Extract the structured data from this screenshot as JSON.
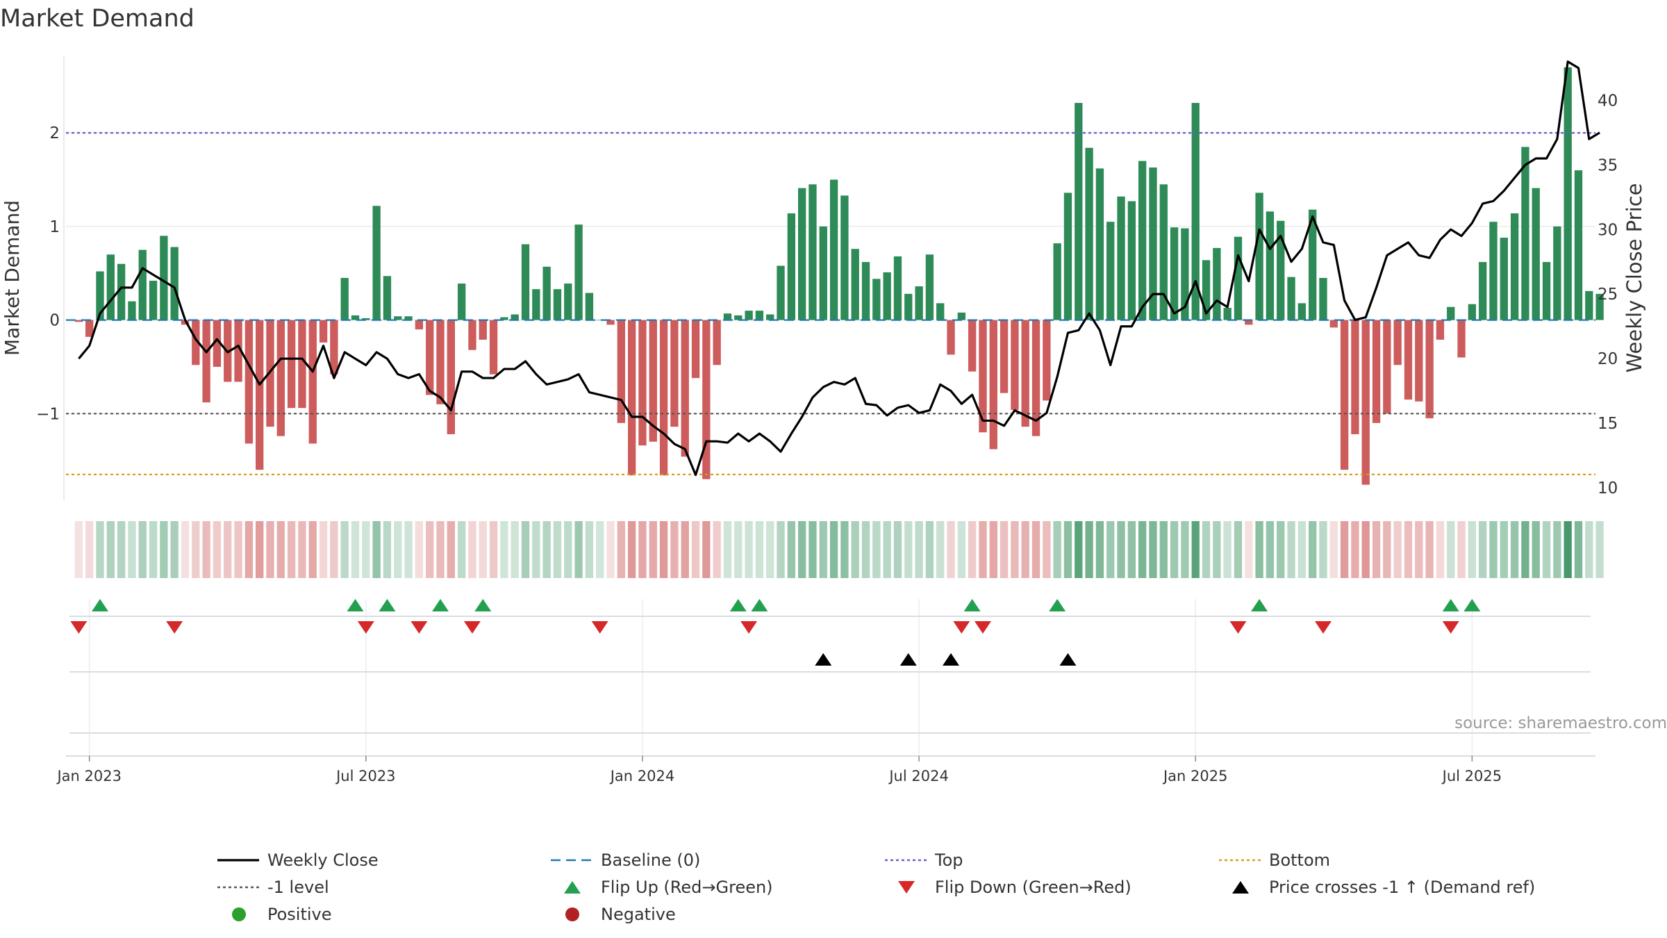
{
  "chart_data": {
    "type": "bar",
    "title": "Market Demand",
    "ylabel": "Market Demand",
    "y2label": "Weekly Close Price",
    "ylim": [
      -2.0,
      2.9
    ],
    "y2lim": [
      8.5,
      44.0
    ],
    "yticks": [
      {
        "v": 2,
        "label": "2"
      },
      {
        "v": 1,
        "label": "1"
      },
      {
        "v": 0,
        "label": "0"
      },
      {
        "v": -1,
        "label": "−1"
      }
    ],
    "y2ticks": [
      {
        "v": 40,
        "label": "40"
      },
      {
        "v": 35,
        "label": "35"
      },
      {
        "v": 30,
        "label": "30"
      },
      {
        "v": 25,
        "label": "25"
      },
      {
        "v": 20,
        "label": "20"
      },
      {
        "v": 15,
        "label": "15"
      },
      {
        "v": 10,
        "label": "10"
      }
    ],
    "xticks": [
      {
        "week": 1,
        "label": "Jan 2023"
      },
      {
        "week": 27,
        "label": "Jul 2023"
      },
      {
        "week": 53,
        "label": "Jan 2024"
      },
      {
        "week": 79,
        "label": "Jul 2024"
      },
      {
        "week": 105,
        "label": "Jan 2025"
      },
      {
        "week": 131,
        "label": "Jul 2025"
      }
    ],
    "x_domain": [
      -1.2,
      142.6
    ],
    "demand": [
      -0.02,
      -0.18,
      0.52,
      0.7,
      0.6,
      0.2,
      0.75,
      0.42,
      0.9,
      0.78,
      -0.05,
      -0.48,
      -0.88,
      -0.5,
      -0.66,
      -0.66,
      -1.32,
      -1.6,
      -1.14,
      -1.24,
      -0.94,
      -0.94,
      -1.32,
      -0.24,
      -0.58,
      0.45,
      0.05,
      0.02,
      1.22,
      0.47,
      0.04,
      0.04,
      -0.1,
      -0.8,
      -0.9,
      -1.22,
      0.39,
      -0.32,
      -0.21,
      -0.58,
      0.03,
      0.06,
      0.81,
      0.33,
      0.57,
      0.33,
      0.39,
      1.02,
      0.29,
      0.0,
      -0.05,
      -1.1,
      -1.66,
      -1.34,
      -1.3,
      -1.66,
      -1.14,
      -1.46,
      -0.62,
      -1.7,
      -0.48,
      0.07,
      0.05,
      0.1,
      0.1,
      0.06,
      0.58,
      1.14,
      1.41,
      1.45,
      1.0,
      1.5,
      1.33,
      0.76,
      0.62,
      0.44,
      0.51,
      0.68,
      0.28,
      0.36,
      0.7,
      0.18,
      -0.37,
      0.08,
      -0.55,
      -1.2,
      -1.38,
      -0.78,
      -0.96,
      -1.14,
      -1.24,
      -0.86,
      0.82,
      1.36,
      2.32,
      1.84,
      1.62,
      1.05,
      1.32,
      1.27,
      1.7,
      1.63,
      1.45,
      0.99,
      0.98,
      2.32,
      0.64,
      0.77,
      0.13,
      0.89,
      -0.05,
      1.36,
      1.16,
      1.06,
      0.46,
      0.18,
      1.18,
      0.45,
      -0.08,
      -1.6,
      -1.22,
      -1.76,
      -1.1,
      -1.0,
      -0.48,
      -0.85,
      -0.87,
      -1.05,
      -0.21,
      0.14,
      -0.4,
      0.17,
      0.62,
      1.05,
      0.88,
      1.14,
      1.85,
      1.41,
      0.62,
      1.0,
      2.7,
      1.6,
      0.31,
      0.28
    ],
    "price": [
      20.0,
      21.0,
      23.5,
      24.5,
      25.5,
      25.5,
      27.0,
      26.5,
      26.0,
      25.5,
      23.0,
      21.5,
      20.5,
      21.5,
      20.5,
      21.0,
      19.5,
      18.0,
      19.0,
      20.0,
      20.0,
      20.0,
      19.0,
      21.0,
      18.5,
      20.5,
      20.0,
      19.5,
      20.5,
      20.0,
      18.8,
      18.5,
      18.8,
      17.5,
      17.0,
      16.0,
      19.0,
      19.0,
      18.5,
      18.5,
      19.2,
      19.2,
      19.8,
      18.8,
      18.0,
      18.2,
      18.4,
      18.8,
      17.4,
      17.2,
      17.0,
      16.8,
      15.5,
      15.5,
      14.8,
      14.2,
      13.4,
      13.0,
      11.0,
      13.6,
      13.6,
      13.5,
      14.2,
      13.6,
      14.2,
      13.6,
      12.8,
      14.2,
      15.5,
      17.0,
      17.8,
      18.2,
      18.0,
      18.5,
      16.5,
      16.4,
      15.6,
      16.2,
      16.4,
      15.8,
      16.0,
      18.0,
      17.5,
      16.5,
      17.2,
      15.2,
      15.2,
      14.8,
      16.0,
      15.6,
      15.2,
      15.8,
      18.6,
      22.0,
      22.2,
      23.5,
      22.2,
      19.5,
      22.5,
      22.5,
      24.0,
      25.0,
      25.0,
      23.5,
      24.0,
      26.0,
      23.5,
      24.5,
      24.0,
      28.0,
      26.0,
      30.0,
      28.5,
      29.5,
      27.5,
      28.5,
      31.0,
      29.0,
      28.8,
      24.5,
      23.0,
      23.2,
      25.5,
      28.0,
      28.5,
      29.0,
      28.0,
      27.8,
      29.2,
      30.0,
      29.5,
      30.5,
      32.0,
      32.2,
      33.0,
      34.0,
      35.0,
      35.5,
      35.5,
      37.0,
      43.0,
      42.5,
      37.0,
      37.5
    ],
    "ref_lines": {
      "top": 2.0,
      "level_minus1": -1.0,
      "bottom": -1.65,
      "baseline": 0.0
    },
    "flip_up_weeks": [
      2,
      26,
      29,
      34,
      38,
      62,
      64,
      84,
      92,
      111,
      129,
      131
    ],
    "flip_down_weeks": [
      0,
      9,
      27,
      32,
      37,
      49,
      63,
      83,
      85,
      109,
      117,
      129
    ],
    "price_cross_weeks": [
      70,
      78,
      82,
      93
    ],
    "source": "source: sharemaestro.com",
    "colors": {
      "positive": "#2e8b57",
      "negative": "#cd5c5c",
      "price": "#000000",
      "top": "#6a5acd",
      "level": "#555555",
      "bottom": "#d4a017",
      "baseline": "#1f77b4",
      "flip_up": "#22a050",
      "flip_down": "#d62828",
      "cross": "#000000",
      "legend_positive": "#2ca02c",
      "legend_negative": "#b22222"
    },
    "legend": [
      {
        "type": "line",
        "label": "Weekly Close"
      },
      {
        "type": "dash-baseline",
        "label": "Baseline (0)"
      },
      {
        "type": "dot-top",
        "label": "Top"
      },
      {
        "type": "dot-bottom",
        "label": "Bottom"
      },
      {
        "type": "dot-level",
        "label": "-1 level"
      },
      {
        "type": "tri-up-green",
        "label": "Flip Up (Red→Green)"
      },
      {
        "type": "tri-down-red",
        "label": "Flip Down (Green→Red)"
      },
      {
        "type": "tri-up-black",
        "label": "Price crosses -1 ↑ (Demand ref)"
      },
      {
        "type": "dot-pos",
        "label": "Positive"
      },
      {
        "type": "dot-neg",
        "label": "Negative"
      }
    ]
  }
}
